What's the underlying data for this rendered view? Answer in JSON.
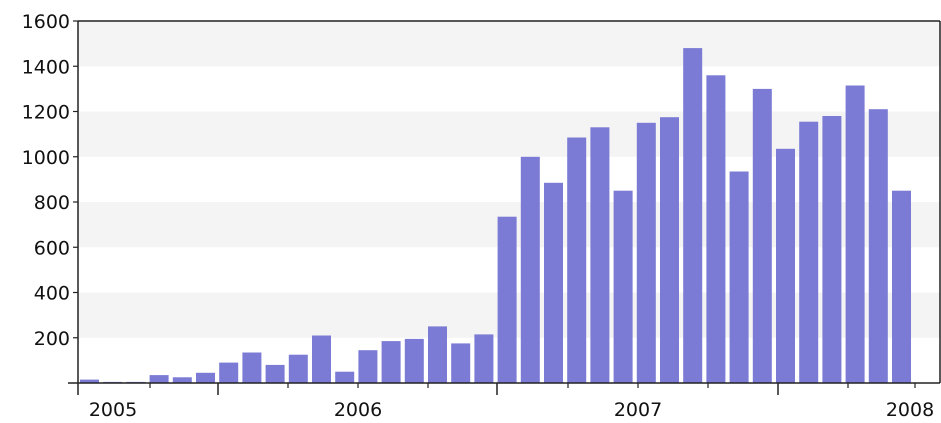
{
  "chart_data": {
    "type": "bar",
    "title": "",
    "xlabel": "",
    "ylabel": "",
    "ylim": [
      0,
      1600
    ],
    "y_ticks": [
      200,
      400,
      600,
      800,
      1000,
      1200,
      1400,
      1600
    ],
    "x_axis_labels": [
      "2005",
      "2006",
      "2007",
      "2008"
    ],
    "grid": "horizontal bands",
    "bar_color": "#7b7bd6",
    "categories": [
      "2005-01",
      "2005-02",
      "2005-03",
      "2005-04",
      "2005-05",
      "2005-06",
      "2005-07",
      "2005-08",
      "2005-09",
      "2005-10",
      "2005-11",
      "2005-12",
      "2006-01",
      "2006-02",
      "2006-03",
      "2006-04",
      "2006-05",
      "2006-06",
      "2006-07",
      "2006-08",
      "2006-09",
      "2006-10",
      "2006-11",
      "2006-12",
      "2007-01",
      "2007-02",
      "2007-03",
      "2007-04",
      "2007-05",
      "2007-06",
      "2007-07",
      "2007-08",
      "2007-09",
      "2007-10",
      "2007-11",
      "2007-12",
      "2008-01"
    ],
    "values": [
      15,
      5,
      5,
      35,
      25,
      45,
      90,
      135,
      80,
      125,
      210,
      50,
      145,
      185,
      195,
      250,
      175,
      215,
      735,
      1000,
      885,
      1085,
      1130,
      850,
      1150,
      1175,
      1480,
      1360,
      935,
      1300,
      1035,
      1155,
      1180,
      1315,
      1210,
      850,
      null
    ]
  }
}
